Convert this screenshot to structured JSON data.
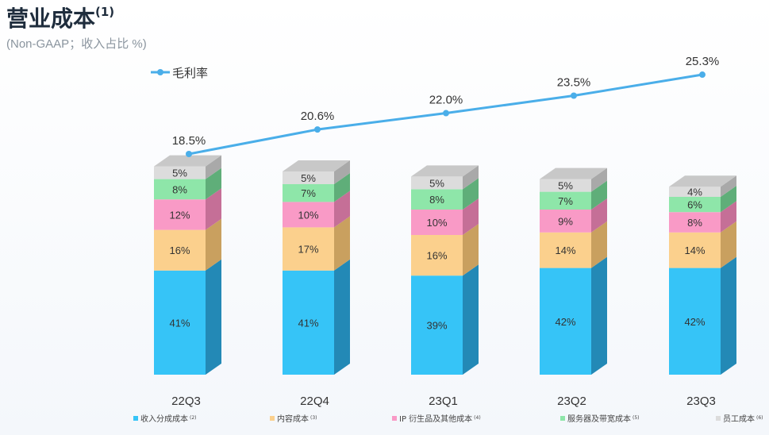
{
  "title": "营业成本",
  "title_note": "(1)",
  "subtitle": "(Non-GAAP；收入占比 %)",
  "chart_data": {
    "type": "stacked-bar-with-line",
    "categories": [
      "22Q3",
      "22Q4",
      "23Q1",
      "23Q2",
      "23Q3"
    ],
    "unit": "% of revenue",
    "series": [
      {
        "name": "收入分成成本",
        "note": "(2)",
        "color": "#36c4f7",
        "side_color": "#2389b6",
        "values": [
          41,
          41,
          39,
          42,
          42
        ],
        "labels": [
          "41%",
          "41%",
          "39%",
          "42%",
          "42%"
        ]
      },
      {
        "name": "内容成本",
        "note": "(3)",
        "color": "#fbd08d",
        "side_color": "#c9a05f",
        "values": [
          16,
          17,
          16,
          14,
          14
        ],
        "labels": [
          "16%",
          "17%",
          "16%",
          "14%",
          "14%"
        ]
      },
      {
        "name": "IP 衍生品及其他成本",
        "note": "(4)",
        "color": "#f99ac6",
        "side_color": "#c56f97",
        "values": [
          12,
          10,
          10,
          9,
          8
        ],
        "labels": [
          "12%",
          "10%",
          "10%",
          "9%",
          "8%"
        ]
      },
      {
        "name": "服务器及带宽成本",
        "note": "(5)",
        "color": "#8ee6a9",
        "side_color": "#5fae79",
        "values": [
          8,
          7,
          8,
          7,
          6
        ],
        "labels": [
          "8%",
          "7%",
          "8%",
          "7%",
          "6%"
        ]
      },
      {
        "name": "员工成本",
        "note": "(6)",
        "color": "#dcdcdc",
        "side_color": "#a9a9a9",
        "values": [
          5,
          5,
          5,
          5,
          4
        ],
        "labels": [
          "5%",
          "5%",
          "5%",
          "5%",
          "4%"
        ]
      }
    ],
    "line": {
      "name": "毛利率",
      "color": "#4aaee9",
      "values": [
        18.5,
        20.6,
        22.0,
        23.5,
        25.3
      ],
      "labels": [
        "18.5%",
        "20.6%",
        "22.0%",
        "23.5%",
        "25.3%"
      ]
    },
    "legend_position": "bottom"
  }
}
